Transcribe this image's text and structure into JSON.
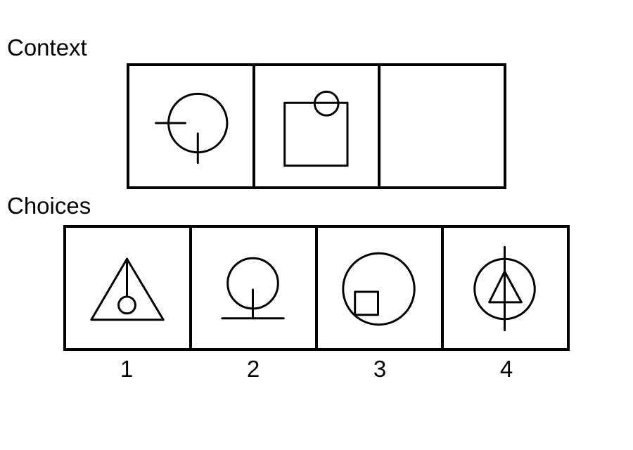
{
  "labels": {
    "context": "Context",
    "choices": "Choices"
  },
  "context_panels": [
    {
      "shapes": [
        "circle",
        "horizontal-tick",
        "vertical-tick"
      ]
    },
    {
      "shapes": [
        "square",
        "small-circle"
      ]
    },
    {
      "shapes": []
    }
  ],
  "choices": [
    {
      "number": "1",
      "shapes": [
        "triangle",
        "vertical-line",
        "small-circle"
      ]
    },
    {
      "number": "2",
      "shapes": [
        "circle",
        "vertical-line",
        "horizontal-line"
      ]
    },
    {
      "number": "3",
      "shapes": [
        "circle",
        "small-square"
      ]
    },
    {
      "number": "4",
      "shapes": [
        "circle",
        "triangle",
        "vertical-line"
      ]
    }
  ]
}
